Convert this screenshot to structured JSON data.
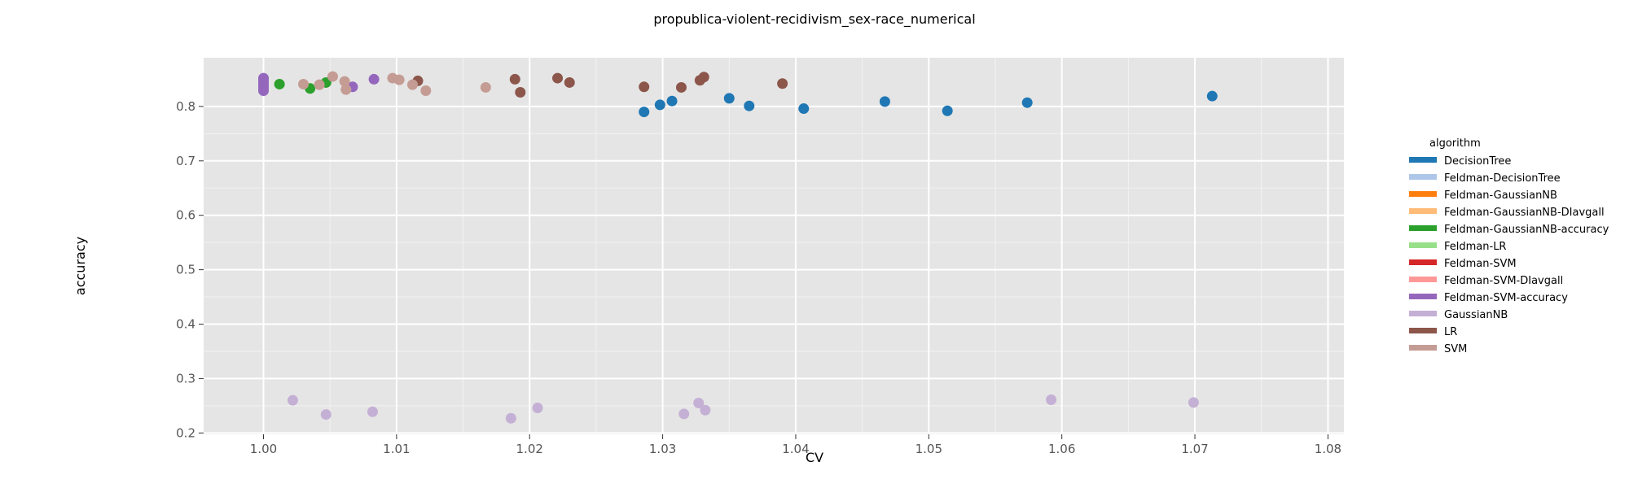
{
  "chart_data": {
    "type": "scatter",
    "title": "propublica-violent-recidivism_sex-race_numerical",
    "xlabel": "CV",
    "ylabel": "accuracy",
    "xlim": [
      0.9955,
      1.0812
    ],
    "ylim": [
      0.1975,
      0.8895
    ],
    "xticks": [
      1.0,
      1.01,
      1.02,
      1.03,
      1.04,
      1.05,
      1.06,
      1.07,
      1.08
    ],
    "xtick_labels": [
      "1.00",
      "1.01",
      "1.02",
      "1.03",
      "1.04",
      "1.05",
      "1.06",
      "1.07",
      "1.08"
    ],
    "yticks": [
      0.2,
      0.3,
      0.4,
      0.5,
      0.6,
      0.7,
      0.8
    ],
    "ytick_labels": [
      "0.2",
      "0.3",
      "0.4",
      "0.5",
      "0.6",
      "0.7",
      "0.8"
    ],
    "grid": true,
    "legend": {
      "title": "algorithm",
      "placement": "right",
      "entries": [
        {
          "name": "DecisionTree",
          "color": "#1f77b4"
        },
        {
          "name": "Feldman-DecisionTree",
          "color": "#aec7e8"
        },
        {
          "name": "Feldman-GaussianNB",
          "color": "#ff7f0e"
        },
        {
          "name": "Feldman-GaussianNB-DIavgall",
          "color": "#ffbb78"
        },
        {
          "name": "Feldman-GaussianNB-accuracy",
          "color": "#2ca02c"
        },
        {
          "name": "Feldman-LR",
          "color": "#98df8a"
        },
        {
          "name": "Feldman-SVM",
          "color": "#d62728"
        },
        {
          "name": "Feldman-SVM-DIavgall",
          "color": "#ff9896"
        },
        {
          "name": "Feldman-SVM-accuracy",
          "color": "#9467bd"
        },
        {
          "name": "GaussianNB",
          "color": "#c5b0d5"
        },
        {
          "name": "LR",
          "color": "#8c564b"
        },
        {
          "name": "SVM",
          "color": "#c49c94"
        }
      ]
    },
    "series": [
      {
        "name": "DecisionTree",
        "color": "#1f77b4",
        "points": [
          [
            1.0286,
            0.79
          ],
          [
            1.0298,
            0.803
          ],
          [
            1.0307,
            0.81
          ],
          [
            1.035,
            0.815
          ],
          [
            1.0365,
            0.801
          ],
          [
            1.0406,
            0.796
          ],
          [
            1.0467,
            0.809
          ],
          [
            1.0514,
            0.792
          ],
          [
            1.0574,
            0.807
          ],
          [
            1.0713,
            0.819
          ]
        ]
      },
      {
        "name": "Feldman-GaussianNB-accuracy",
        "color": "#2ca02c",
        "points": [
          [
            1.0012,
            0.841
          ],
          [
            1.0035,
            0.833
          ],
          [
            1.0047,
            0.844
          ]
        ]
      },
      {
        "name": "Feldman-SVM-accuracy",
        "color": "#9467bd",
        "points": [
          [
            1.0,
            0.829
          ],
          [
            1.0,
            0.834
          ],
          [
            1.0,
            0.838
          ],
          [
            1.0,
            0.843
          ],
          [
            1.0,
            0.848
          ],
          [
            1.0,
            0.852
          ],
          [
            1.0067,
            0.836
          ],
          [
            1.0083,
            0.85
          ]
        ]
      },
      {
        "name": "GaussianNB",
        "color": "#c5b0d5",
        "points": [
          [
            1.0022,
            0.26
          ],
          [
            1.0047,
            0.234
          ],
          [
            1.0082,
            0.239
          ],
          [
            1.0186,
            0.227
          ],
          [
            1.0206,
            0.246
          ],
          [
            1.0316,
            0.235
          ],
          [
            1.0327,
            0.255
          ],
          [
            1.0332,
            0.242
          ],
          [
            1.0592,
            0.261
          ],
          [
            1.0699,
            0.256
          ]
        ]
      },
      {
        "name": "LR",
        "color": "#8c564b",
        "points": [
          [
            1.0116,
            0.847
          ],
          [
            1.0189,
            0.85
          ],
          [
            1.0193,
            0.826
          ],
          [
            1.0221,
            0.852
          ],
          [
            1.023,
            0.844
          ],
          [
            1.0286,
            0.836
          ],
          [
            1.0314,
            0.835
          ],
          [
            1.0328,
            0.848
          ],
          [
            1.0331,
            0.854
          ],
          [
            1.039,
            0.842
          ]
        ]
      },
      {
        "name": "SVM",
        "color": "#c49c94",
        "points": [
          [
            1.003,
            0.841
          ],
          [
            1.0042,
            0.84
          ],
          [
            1.0052,
            0.855
          ],
          [
            1.0061,
            0.846
          ],
          [
            1.0062,
            0.831
          ],
          [
            1.0097,
            0.852
          ],
          [
            1.0102,
            0.849
          ],
          [
            1.0112,
            0.84
          ],
          [
            1.0122,
            0.829
          ],
          [
            1.0167,
            0.835
          ]
        ]
      }
    ]
  }
}
